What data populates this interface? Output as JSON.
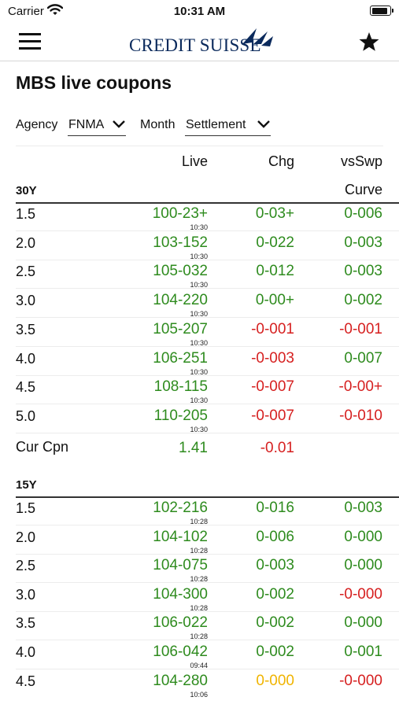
{
  "status_bar": {
    "carrier": "Carrier",
    "time": "10:31 AM"
  },
  "nav": {
    "logo_text": "CREDIT SUISSE"
  },
  "page_title": "MBS live coupons",
  "filters": {
    "agency_label": "Agency",
    "agency_value": "FNMA",
    "month_label": "Month",
    "month_value": "Settlement"
  },
  "columns": {
    "live": "Live",
    "chg": "Chg",
    "vsswp": "vsSwp",
    "curve": "Curve"
  },
  "colors": {
    "positive": "#2e8b1e",
    "negative": "#d62020",
    "flat": "#f0b400",
    "brand": "#0b2a5c"
  },
  "sections": [
    {
      "title": "30Y",
      "rows": [
        {
          "coupon": "1.5",
          "live": "100-23+",
          "time": "10:30",
          "chg": "0-03+",
          "vs": "0-006"
        },
        {
          "coupon": "2.0",
          "live": "103-152",
          "time": "10:30",
          "chg": "0-022",
          "vs": "0-003"
        },
        {
          "coupon": "2.5",
          "live": "105-032",
          "time": "10:30",
          "chg": "0-012",
          "vs": "0-003"
        },
        {
          "coupon": "3.0",
          "live": "104-220",
          "time": "10:30",
          "chg": "0-00+",
          "vs": "0-002"
        },
        {
          "coupon": "3.5",
          "live": "105-207",
          "time": "10:30",
          "chg": "-0-001",
          "vs": "-0-001"
        },
        {
          "coupon": "4.0",
          "live": "106-251",
          "time": "10:30",
          "chg": "-0-003",
          "vs": "0-007"
        },
        {
          "coupon": "4.5",
          "live": "108-115",
          "time": "10:30",
          "chg": "-0-007",
          "vs": "-0-00+"
        },
        {
          "coupon": "5.0",
          "live": "110-205",
          "time": "10:30",
          "chg": "-0-007",
          "vs": "-0-010"
        }
      ],
      "current_coupon": {
        "label": "Cur Cpn",
        "live": "1.41",
        "chg": "-0.01"
      }
    },
    {
      "title": "15Y",
      "rows": [
        {
          "coupon": "1.5",
          "live": "102-216",
          "time": "10:28",
          "chg": "0-016",
          "vs": "0-003"
        },
        {
          "coupon": "2.0",
          "live": "104-102",
          "time": "10:28",
          "chg": "0-006",
          "vs": "0-000"
        },
        {
          "coupon": "2.5",
          "live": "104-075",
          "time": "10:28",
          "chg": "0-003",
          "vs": "0-000"
        },
        {
          "coupon": "3.0",
          "live": "104-300",
          "time": "10:28",
          "chg": "0-002",
          "vs": "-0-000"
        },
        {
          "coupon": "3.5",
          "live": "106-022",
          "time": "10:28",
          "chg": "0-002",
          "vs": "0-000"
        },
        {
          "coupon": "4.0",
          "live": "106-042",
          "time": "09:44",
          "chg": "0-002",
          "vs": "0-001"
        },
        {
          "coupon": "4.5",
          "live": "104-280",
          "time": "10:06",
          "chg": "0-000",
          "vs": "-0-000"
        }
      ]
    }
  ]
}
